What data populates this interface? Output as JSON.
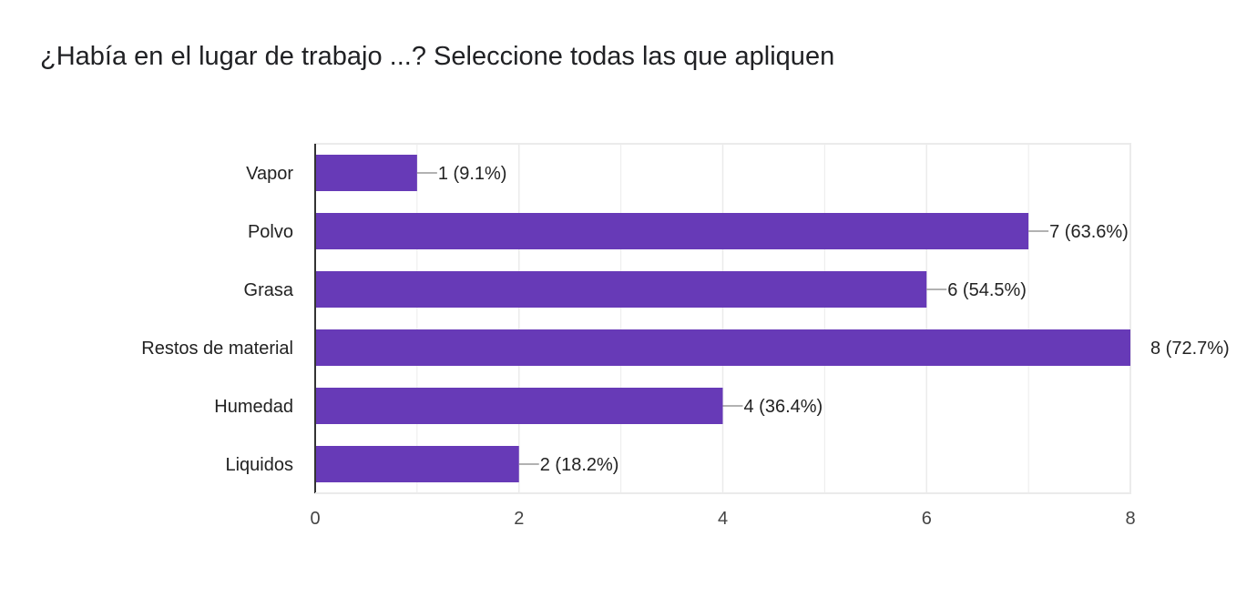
{
  "title": "¿Había en el lugar de trabajo ...? Seleccione todas las que apliquen",
  "colors": {
    "bar": "#673ab7",
    "grid": "#ebebeb",
    "axis": "#333333",
    "leader": "#999999"
  },
  "chart_data": {
    "type": "bar",
    "orientation": "horizontal",
    "title": "¿Había en el lugar de trabajo ...? Seleccione todas las que apliquen",
    "categories": [
      "Vapor",
      "Polvo",
      "Grasa",
      "Restos de material",
      "Humedad",
      "Liquidos"
    ],
    "values": [
      1,
      7,
      6,
      8,
      4,
      2
    ],
    "data_labels": [
      "1 (9.1%)",
      "7 (63.6%)",
      "6 (54.5%)",
      "8 (72.7%)",
      "4 (36.4%)",
      "2 (18.2%)"
    ],
    "xlim": [
      0,
      8
    ],
    "x_ticks": [
      0,
      2,
      4,
      6,
      8
    ],
    "xlabel": "",
    "ylabel": "",
    "grid": true,
    "legend": "none"
  }
}
